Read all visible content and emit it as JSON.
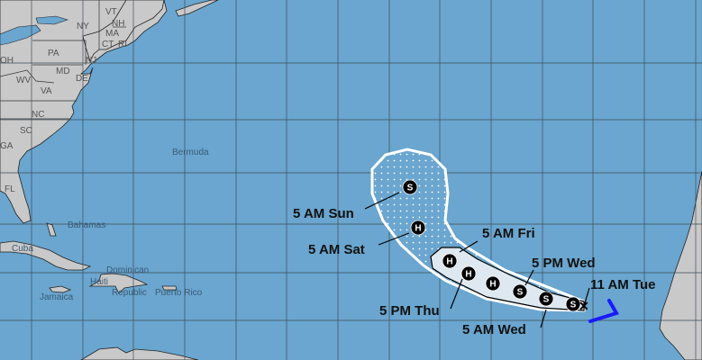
{
  "map": {
    "ocean_color": "#6aa6cf",
    "land_color": "#c9c9c9",
    "cone_inner_color": "#dde8f0",
    "track_color": "#000000",
    "past_track_color": "#1a1aff",
    "state_labels": [
      "VT",
      "NH",
      "NY",
      "MA",
      "CT",
      "RI",
      "PA",
      "OH",
      "WV",
      "VA",
      "MD",
      "DE",
      "NJ",
      "NC",
      "SC",
      "GA",
      "FL"
    ],
    "place_labels": [
      "Bermuda",
      "Bahamas",
      "Cuba",
      "Haiti",
      "Dominican",
      "Republic",
      "Puerto Rico",
      "Jamaica"
    ],
    "forecast_points": [
      {
        "label": "5 AM Sun",
        "type": "S"
      },
      {
        "label": "5 AM Sat",
        "type": "H"
      },
      {
        "label": "5 AM Fri",
        "type": "H"
      },
      {
        "label": "5 PM Thu",
        "type": "H"
      },
      {
        "label": "",
        "type": "H"
      },
      {
        "label": "5 PM Wed",
        "type": "S"
      },
      {
        "label": "5 AM Wed",
        "type": "S"
      },
      {
        "label": "",
        "type": "S"
      }
    ],
    "current_position": {
      "label": "11 AM Tue",
      "marker": "X"
    }
  }
}
